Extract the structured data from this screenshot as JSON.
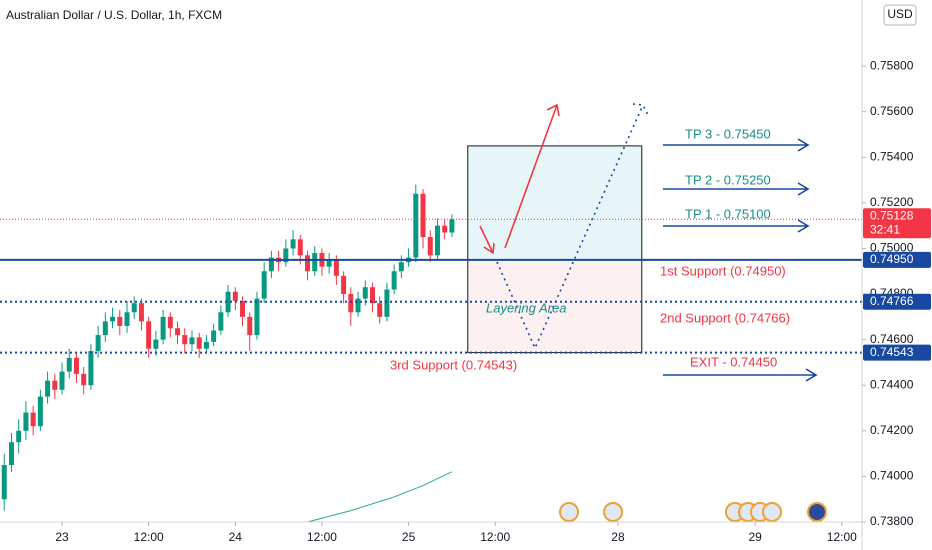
{
  "chart_data": {
    "type": "candlestick",
    "title": "Australian Dollar / U.S. Dollar, 1h, FXCM",
    "currency": "USD",
    "up_color": "#089981",
    "down_color": "#f23645",
    "xlim": [
      -8.59,
      110.8
    ],
    "ylim": [
      0.738,
      0.7609
    ],
    "xticks": [
      {
        "value": 0,
        "label": "23"
      },
      {
        "value": 12,
        "label": "12:00"
      },
      {
        "value": 24,
        "label": "24"
      },
      {
        "value": 36,
        "label": "12:00"
      },
      {
        "value": 48,
        "label": "25"
      },
      {
        "value": 60,
        "label": "12:00"
      },
      {
        "value": 77,
        "label": "28"
      },
      {
        "value": 96,
        "label": "29"
      },
      {
        "value": 108,
        "label": "12:00"
      }
    ],
    "yticks": [
      {
        "value": 0.738,
        "label": "0.73800"
      },
      {
        "value": 0.74,
        "label": "0.74000"
      },
      {
        "value": 0.742,
        "label": "0.74200"
      },
      {
        "value": 0.744,
        "label": "0.74400"
      },
      {
        "value": 0.746,
        "label": "0.74600"
      },
      {
        "value": 0.748,
        "label": "0.74800"
      },
      {
        "value": 0.75,
        "label": "0.75000"
      },
      {
        "value": 0.752,
        "label": "0.75200"
      },
      {
        "value": 0.754,
        "label": "0.75400"
      },
      {
        "value": 0.756,
        "label": "0.75600"
      },
      {
        "value": 0.758,
        "label": "0.75800"
      }
    ],
    "x": [
      -8,
      -7,
      -6,
      -5,
      -4,
      -3,
      -2,
      -1,
      0,
      1,
      2,
      3,
      4,
      5,
      6,
      7,
      8,
      9,
      10,
      11,
      12,
      13,
      14,
      15,
      16,
      17,
      18,
      19,
      20,
      21,
      22,
      23,
      24,
      25,
      26,
      27,
      28,
      29,
      30,
      31,
      32,
      33,
      34,
      35,
      36,
      37,
      38,
      39,
      40,
      41,
      42,
      43,
      44,
      45,
      46,
      47,
      48,
      49,
      50,
      51,
      52,
      53,
      54
    ],
    "open": [
      0.739,
      0.7405,
      0.7415,
      0.742,
      0.7428,
      0.7422,
      0.7435,
      0.7442,
      0.7438,
      0.7446,
      0.7452,
      0.7445,
      0.744,
      0.7455,
      0.7462,
      0.7468,
      0.747,
      0.7466,
      0.7472,
      0.7476,
      0.7468,
      0.7456,
      0.746,
      0.747,
      0.7465,
      0.7462,
      0.7458,
      0.7461,
      0.7456,
      0.7459,
      0.7464,
      0.7472,
      0.7481,
      0.7477,
      0.747,
      0.7462,
      0.7478,
      0.749,
      0.7496,
      0.7494,
      0.75,
      0.7504,
      0.7497,
      0.749,
      0.7498,
      0.7492,
      0.7495,
      0.7488,
      0.748,
      0.7472,
      0.7478,
      0.7483,
      0.7476,
      0.747,
      0.7482,
      0.749,
      0.7494,
      0.7496,
      0.7524,
      0.7505,
      0.7497,
      0.751,
      0.7507
    ],
    "high": [
      0.741,
      0.7419,
      0.7425,
      0.7433,
      0.7431,
      0.7438,
      0.7446,
      0.7445,
      0.745,
      0.7456,
      0.7454,
      0.7448,
      0.7458,
      0.7466,
      0.7472,
      0.7474,
      0.7473,
      0.7477,
      0.7479,
      0.7478,
      0.747,
      0.7464,
      0.7473,
      0.7472,
      0.7468,
      0.7465,
      0.7464,
      0.7463,
      0.7462,
      0.7467,
      0.7475,
      0.7484,
      0.7483,
      0.7479,
      0.7472,
      0.7481,
      0.7494,
      0.7499,
      0.7499,
      0.7504,
      0.7508,
      0.7506,
      0.7499,
      0.7501,
      0.75,
      0.7498,
      0.7497,
      0.749,
      0.7483,
      0.7481,
      0.7486,
      0.7485,
      0.7479,
      0.7485,
      0.7493,
      0.7497,
      0.75,
      0.7528,
      0.7526,
      0.7508,
      0.7513,
      0.7513,
      0.7515
    ],
    "low": [
      0.7385,
      0.7402,
      0.741,
      0.7416,
      0.7418,
      0.742,
      0.7432,
      0.7434,
      0.7436,
      0.7443,
      0.7441,
      0.7436,
      0.7438,
      0.7452,
      0.7459,
      0.7465,
      0.7462,
      0.7463,
      0.7469,
      0.7464,
      0.7452,
      0.7453,
      0.7458,
      0.7461,
      0.7458,
      0.7454,
      0.7455,
      0.7452,
      0.7454,
      0.7457,
      0.7462,
      0.747,
      0.7473,
      0.7466,
      0.7455,
      0.746,
      0.7476,
      0.7487,
      0.749,
      0.7492,
      0.7497,
      0.7493,
      0.7486,
      0.7488,
      0.7488,
      0.7489,
      0.7484,
      0.7476,
      0.7466,
      0.747,
      0.7475,
      0.7472,
      0.7467,
      0.7468,
      0.748,
      0.7487,
      0.7492,
      0.7494,
      0.75,
      0.7494,
      0.7495,
      0.7504,
      0.7505
    ],
    "close": [
      0.7405,
      0.7415,
      0.742,
      0.7428,
      0.7422,
      0.7435,
      0.7442,
      0.7438,
      0.7446,
      0.7452,
      0.7445,
      0.744,
      0.7455,
      0.7462,
      0.7468,
      0.747,
      0.7466,
      0.7472,
      0.7476,
      0.7468,
      0.7456,
      0.746,
      0.747,
      0.7465,
      0.7462,
      0.7458,
      0.7461,
      0.7456,
      0.7459,
      0.7464,
      0.7472,
      0.7481,
      0.7477,
      0.747,
      0.7462,
      0.7478,
      0.749,
      0.7496,
      0.7494,
      0.75,
      0.7504,
      0.7497,
      0.749,
      0.7498,
      0.7492,
      0.7495,
      0.7488,
      0.748,
      0.7472,
      0.7478,
      0.7483,
      0.7476,
      0.747,
      0.7482,
      0.749,
      0.7494,
      0.7496,
      0.7524,
      0.7505,
      0.7497,
      0.751,
      0.7507,
      0.75128
    ],
    "series": [
      {
        "color": "#26a69a",
        "x": [
          34,
          40,
          46,
          50,
          54
        ],
        "values": [
          0.738,
          0.7385,
          0.7391,
          0.7396,
          0.7402
        ]
      }
    ],
    "current_price": {
      "value": 0.75128,
      "label": "0.75128",
      "countdown": "32:41",
      "color": "#f23645"
    },
    "levels": [
      {
        "value": 0.7495,
        "label": "0.74950",
        "style": "solid",
        "color": "#1848a0"
      },
      {
        "value": 0.74766,
        "label": "0.74766",
        "style": "dotted",
        "color": "#1848a0"
      },
      {
        "value": 0.74543,
        "label": "0.74543",
        "style": "dotted",
        "color": "#1848a0"
      }
    ],
    "zones": [
      {
        "xlim": [
          56.2,
          80.3
        ],
        "ylim": [
          0.7495,
          0.7545
        ],
        "color": "#e6f6f8"
      },
      {
        "xlim": [
          56.2,
          80.3
        ],
        "ylim": [
          0.74543,
          0.7495
        ],
        "color": "#fdf0f1"
      }
    ],
    "annotations": [
      {
        "text": "TP 3 - 0.75450",
        "color": "#138f8a"
      },
      {
        "text": "TP 2 - 0.75250",
        "color": "#138f8a"
      },
      {
        "text": "TP 1 - 0.75100",
        "color": "#138f8a"
      },
      {
        "text": "1st Support (0.74950)",
        "color": "#f23645"
      },
      {
        "text": "2nd Support (0.74766)",
        "color": "#f23645"
      },
      {
        "text": "3rd Support (0.74543)",
        "color": "#f23645"
      },
      {
        "text": "EXIT - 0.74450",
        "color": "#f23645"
      },
      {
        "text": "Layering Area",
        "color": "#138f8a"
      }
    ]
  }
}
